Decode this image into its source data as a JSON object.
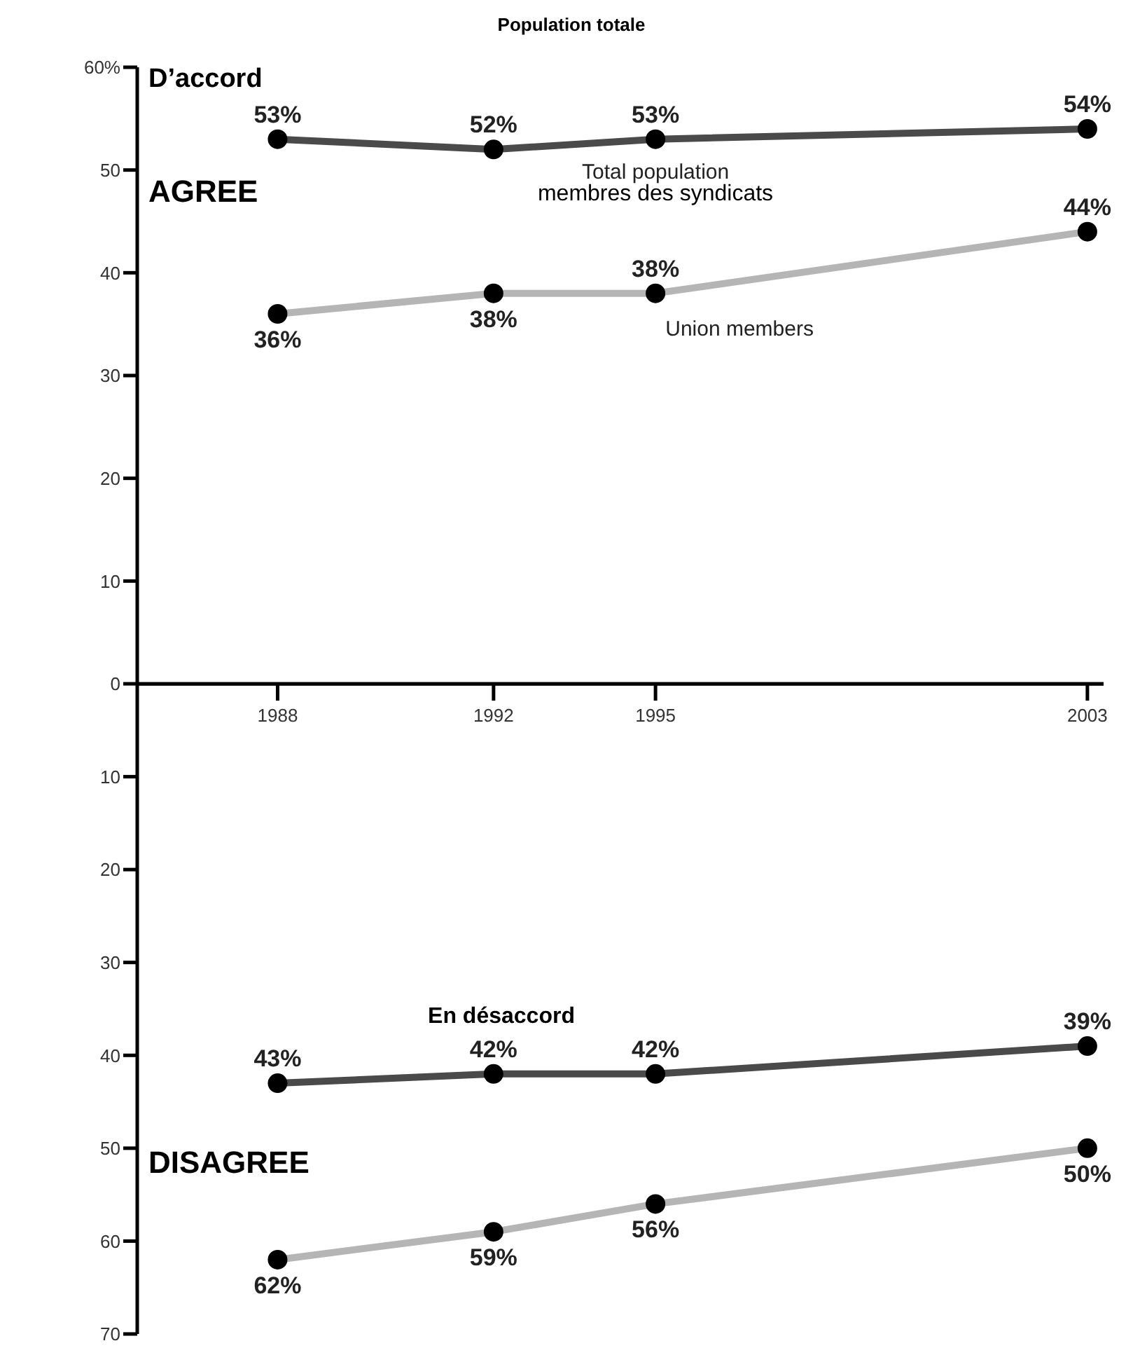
{
  "chart_data": [
    {
      "type": "line",
      "x": [
        1988,
        1992,
        1995,
        2003
      ],
      "xlim": [
        1985.4,
        2003.3
      ],
      "xticks": [
        1988,
        1992,
        1995,
        2003
      ],
      "ylim": [
        0,
        60
      ],
      "yticks": [
        0,
        10,
        20,
        30,
        40,
        50,
        {
          "value": 60,
          "label": "60%"
        }
      ],
      "grid": false,
      "legend": false,
      "marker": "circle",
      "line_style": "solid",
      "series": [
        {
          "name": "Total population",
          "color": "#4a4a4a",
          "values": [
            53,
            52,
            53,
            54
          ],
          "value_labels": [
            "53%",
            "52%",
            "53%",
            "54%"
          ]
        },
        {
          "name": "Union members",
          "color": "#b5b5b5",
          "values": [
            36,
            38,
            38,
            44
          ],
          "value_labels": [
            "36%",
            "38%",
            "38%",
            "44%"
          ]
        }
      ],
      "annotations": [
        "Population totale",
        "D’accord",
        "AGREE",
        "membres des syndicats"
      ]
    },
    {
      "type": "line",
      "x": [
        1988,
        1992,
        1995,
        2003
      ],
      "xlim": [
        1985.4,
        2003.3
      ],
      "ylim": [
        70,
        0
      ],
      "yticks": [
        10,
        20,
        30,
        40,
        50,
        60,
        70
      ],
      "tick_labels": "y",
      "grid": false,
      "legend": false,
      "marker": "circle",
      "line_style": "solid",
      "series": [
        {
          "color": "#4a4a4a",
          "values": [
            43,
            42,
            42,
            39
          ],
          "value_labels": [
            "43%",
            "42%",
            "42%",
            "39%"
          ]
        },
        {
          "color": "#b5b5b5",
          "values": [
            62,
            59,
            56,
            50
          ],
          "value_labels": [
            "62%",
            "59%",
            "56%",
            "50%"
          ]
        }
      ],
      "annotations": [
        "En désaccord",
        "DISAGREE"
      ]
    }
  ]
}
